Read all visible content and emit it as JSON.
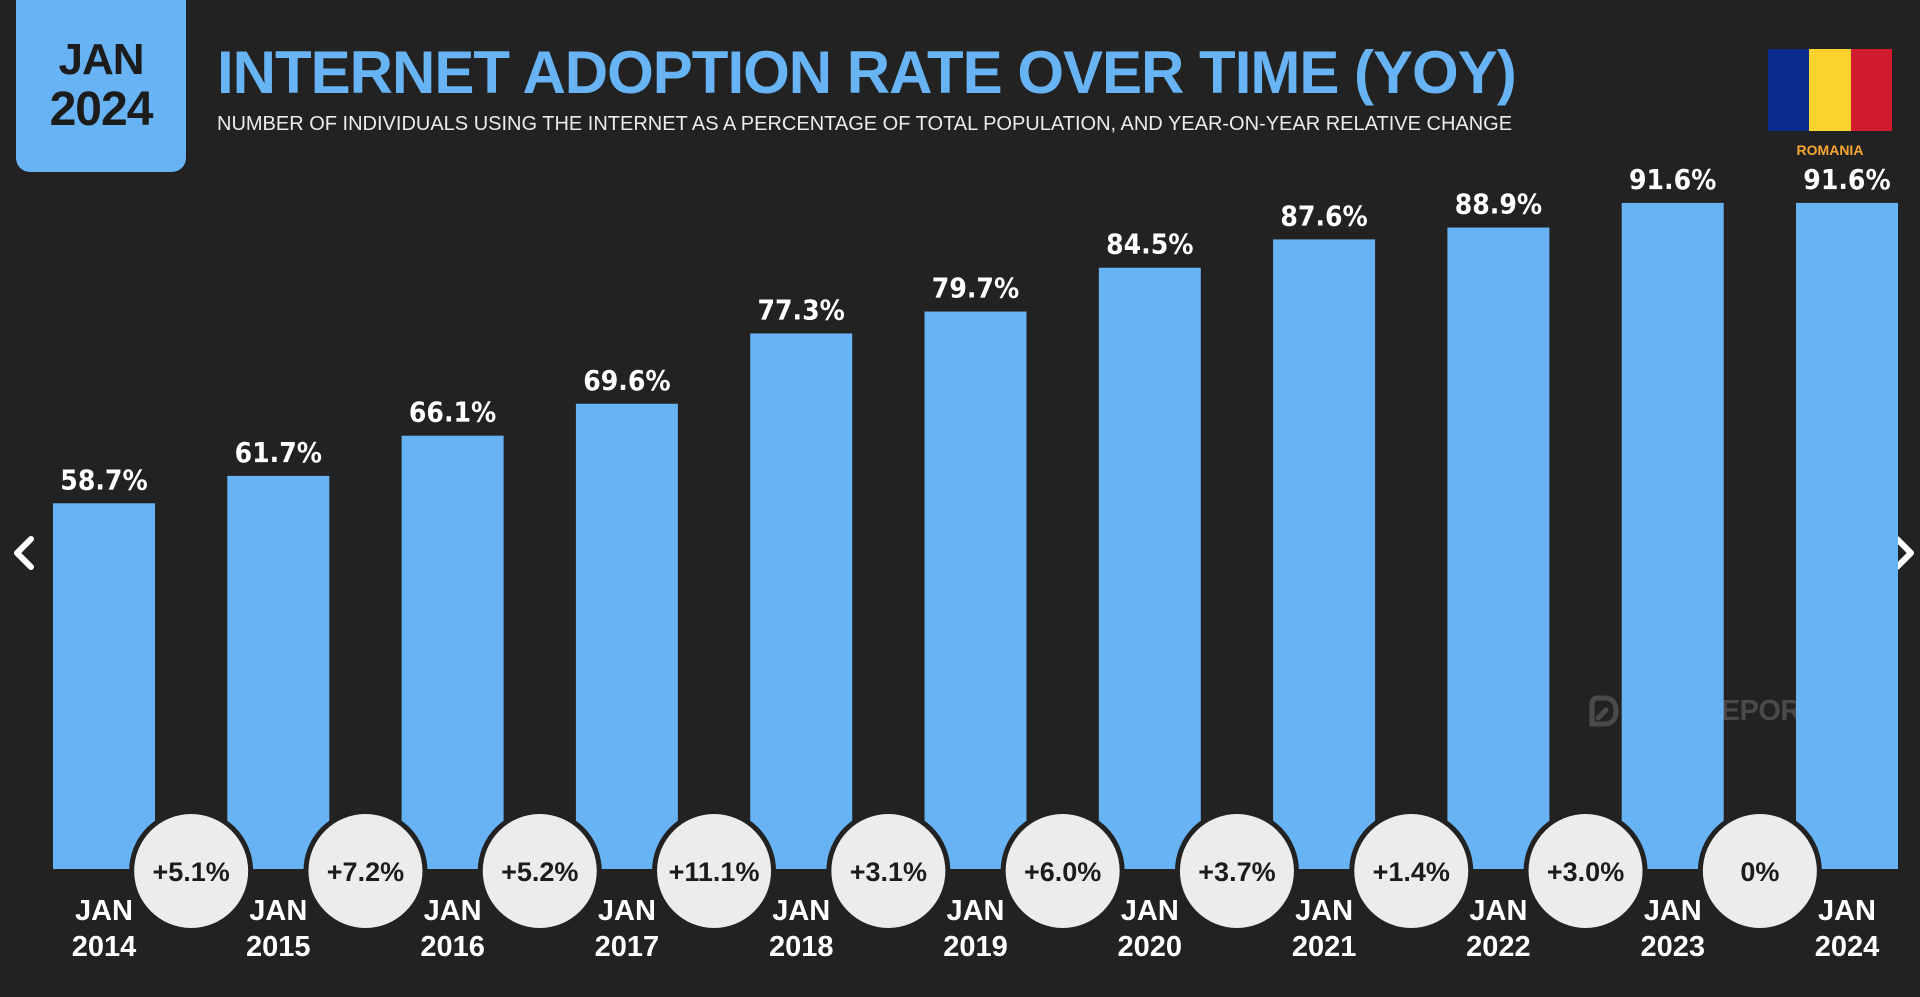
{
  "header": {
    "badge_month": "JAN",
    "badge_year": "2024",
    "title": "INTERNET ADOPTION RATE OVER TIME (YOY)",
    "subtitle": "NUMBER OF INDIVIDUALS USING THE INTERNET AS A PERCENTAGE OF TOTAL POPULATION, AND YEAR-ON-YEAR RELATIVE CHANGE",
    "country": "ROMANIA",
    "flag_colors": [
      "#0a2a8c",
      "#fcd22e",
      "#d31b2f"
    ]
  },
  "watermark": "DATAREPORTAL",
  "nav": {
    "prev_icon": "chevron-left-icon",
    "next_icon": "chevron-right-icon"
  },
  "colors": {
    "bar": "#67b3f3",
    "background": "#222222",
    "bubble": "#ececec",
    "text": "#ffffff"
  },
  "chart_data": {
    "type": "bar",
    "categories": [
      "JAN 2014",
      "JAN 2015",
      "JAN 2016",
      "JAN 2017",
      "JAN 2018",
      "JAN 2019",
      "JAN 2020",
      "JAN 2021",
      "JAN 2022",
      "JAN 2023",
      "JAN 2024"
    ],
    "values": [
      58.7,
      61.7,
      66.1,
      69.6,
      77.3,
      79.7,
      84.5,
      87.6,
      88.9,
      91.6,
      91.6
    ],
    "value_labels": [
      "58.7%",
      "61.7%",
      "66.1%",
      "69.6%",
      "77.3%",
      "79.7%",
      "84.5%",
      "87.6%",
      "88.9%",
      "91.6%",
      "91.6%"
    ],
    "yoy_changes": [
      "+5.1%",
      "+7.2%",
      "+5.2%",
      "+11.1%",
      "+3.1%",
      "+6.0%",
      "+3.7%",
      "+1.4%",
      "+3.0%",
      "0%"
    ],
    "ylim": [
      0,
      100
    ],
    "grid": false,
    "legend": "none"
  }
}
